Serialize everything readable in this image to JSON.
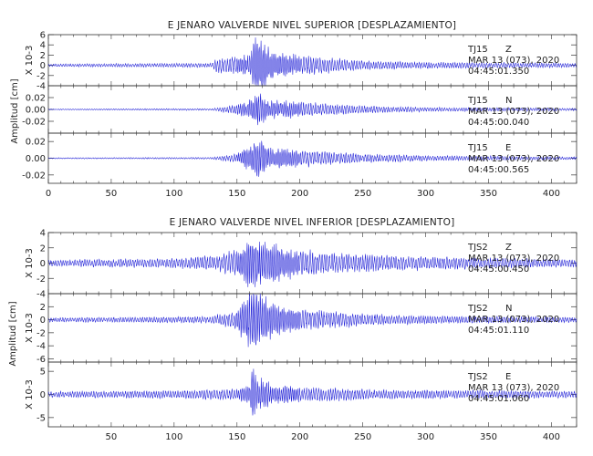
{
  "chart_data": [
    {
      "type": "line",
      "title": "E JENARO VALVERDE NIVEL SUPERIOR [DESPLAZAMIENTO]",
      "ylabel": "Amplitud [cm]",
      "xlim": [
        0,
        420
      ],
      "x_ticks": [
        "0",
        "50",
        "100",
        "150",
        "200",
        "250",
        "300",
        "350",
        "400"
      ],
      "traces": [
        {
          "station": "TJ15",
          "component": "Z",
          "date": "MAR 13 (073), 2020",
          "time": "04:45:01.350",
          "scale_label": "X 10-3",
          "ylim": [
            -4,
            6
          ],
          "y_ticks": [
            "6",
            "4",
            "2",
            "0",
            "-2",
            "-4"
          ],
          "envelope": [
            [
              0,
              0.25
            ],
            [
              130,
              0.4
            ],
            [
              134,
              1.4
            ],
            [
              160,
              2.0
            ],
            [
              165,
              6.0
            ],
            [
              172,
              4.5
            ],
            [
              180,
              2.5
            ],
            [
              200,
              1.8
            ],
            [
              250,
              0.9
            ],
            [
              300,
              0.6
            ],
            [
              420,
              0.4
            ]
          ]
        },
        {
          "station": "TJ15",
          "component": "N",
          "date": "MAR 13 (073), 2020",
          "time": "04:45:00.040",
          "scale_label": "",
          "ylim": [
            -0.04,
            0.04
          ],
          "y_ticks": [
            "0.02",
            "0.00",
            "-0.02"
          ],
          "envelope": [
            [
              0,
              0.0008
            ],
            [
              130,
              0.0015
            ],
            [
              150,
              0.008
            ],
            [
              163,
              0.018
            ],
            [
              167,
              0.03
            ],
            [
              175,
              0.015
            ],
            [
              200,
              0.012
            ],
            [
              250,
              0.006
            ],
            [
              300,
              0.0035
            ],
            [
              420,
              0.002
            ]
          ]
        },
        {
          "station": "TJ15",
          "component": "E",
          "date": "MAR 13 (073), 2020",
          "time": "04:45:00.565",
          "scale_label": "",
          "ylim": [
            -0.03,
            0.03
          ],
          "y_ticks": [
            "0.02",
            "0.00",
            "-0.02"
          ],
          "envelope": [
            [
              0,
              0.0006
            ],
            [
              130,
              0.001
            ],
            [
              150,
              0.005
            ],
            [
              163,
              0.018
            ],
            [
              167,
              0.025
            ],
            [
              175,
              0.012
            ],
            [
              200,
              0.01
            ],
            [
              250,
              0.005
            ],
            [
              300,
              0.003
            ],
            [
              420,
              0.0015
            ]
          ]
        }
      ]
    },
    {
      "type": "line",
      "title": "E JENARO VALVERDE NIVEL INFERIOR [DESPLAZAMIENTO]",
      "ylabel": "Amplitud [cm]",
      "xlim": [
        0,
        420
      ],
      "x_ticks": [
        "50",
        "100",
        "150",
        "200",
        "250",
        "300",
        "350",
        "400"
      ],
      "traces": [
        {
          "station": "TJS2",
          "component": "Z",
          "date": "MAR 13 (073), 2020",
          "time": "04:45:00.450",
          "scale_label": "X 10-3",
          "ylim": [
            -4,
            4
          ],
          "y_ticks": [
            "4",
            "2",
            "0",
            "-2",
            "-4"
          ],
          "envelope": [
            [
              0,
              0.4
            ],
            [
              100,
              0.6
            ],
            [
              134,
              1.0
            ],
            [
              150,
              1.6
            ],
            [
              162,
              3.5
            ],
            [
              170,
              2.8
            ],
            [
              190,
              1.8
            ],
            [
              230,
              1.2
            ],
            [
              300,
              0.8
            ],
            [
              420,
              0.5
            ]
          ]
        },
        {
          "station": "TJS2",
          "component": "N",
          "date": "MAR 13 (073), 2020",
          "time": "04:45:01.110",
          "scale_label": "X 10-3",
          "ylim": [
            -6.5,
            4
          ],
          "y_ticks": [
            "2",
            "0",
            "-2",
            "-4",
            "-6"
          ],
          "envelope": [
            [
              0,
              0.3
            ],
            [
              130,
              0.5
            ],
            [
              150,
              1.5
            ],
            [
              160,
              4.5
            ],
            [
              166,
              4.0
            ],
            [
              180,
              2.3
            ],
            [
              200,
              1.6
            ],
            [
              250,
              0.9
            ],
            [
              300,
              0.6
            ],
            [
              420,
              0.4
            ]
          ]
        },
        {
          "station": "TJS2",
          "component": "E",
          "date": "MAR 13 (073), 2020",
          "time": "04:45:01.060",
          "scale_label": "X 10-3",
          "ylim": [
            -7,
            7
          ],
          "y_ticks": [
            "5",
            "0",
            "-5"
          ],
          "envelope": [
            [
              0,
              0.6
            ],
            [
              100,
              0.8
            ],
            [
              150,
              1.2
            ],
            [
              160,
              2.0
            ],
            [
              162,
              6.0
            ],
            [
              166,
              3.5
            ],
            [
              180,
              2.2
            ],
            [
              200,
              1.6
            ],
            [
              260,
              1.0
            ],
            [
              420,
              0.7
            ]
          ]
        }
      ]
    }
  ],
  "colors": {
    "trace": "#1d1dd6",
    "axis": "#333333",
    "text": "#222222"
  }
}
